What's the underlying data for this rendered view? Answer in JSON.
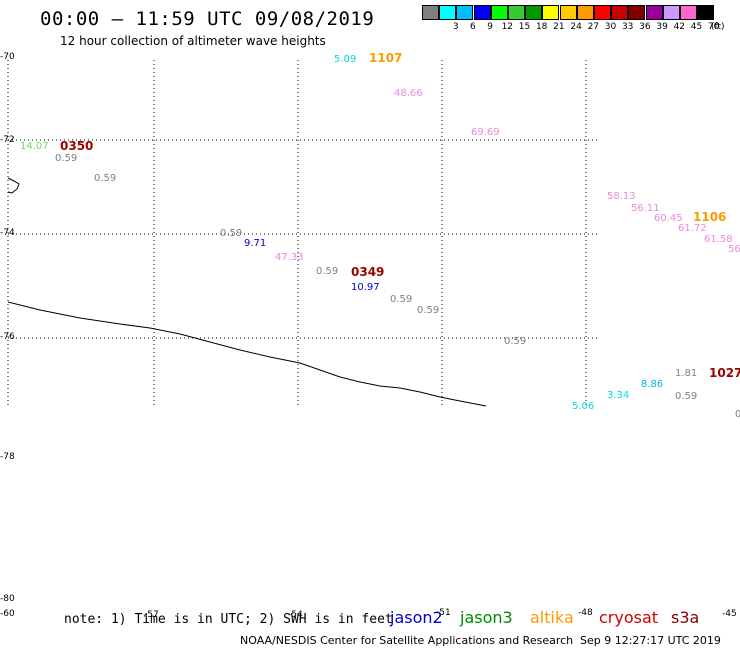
{
  "header": {
    "title": "00:00 – 11:59 UTC 09/08/2019",
    "subtitle": "12 hour collection of altimeter wave heights"
  },
  "colorbar": {
    "unit": "(ft)",
    "swatches": [
      {
        "label": "",
        "color": "#808080"
      },
      {
        "label": "3",
        "color": "#00ffff"
      },
      {
        "label": "6",
        "color": "#00bfff"
      },
      {
        "label": "9",
        "color": "#0000ff"
      },
      {
        "label": "12",
        "color": "#00ff00"
      },
      {
        "label": "15",
        "color": "#33cc33"
      },
      {
        "label": "18",
        "color": "#009900"
      },
      {
        "label": "21",
        "color": "#ffff00"
      },
      {
        "label": "24",
        "color": "#ffcc00"
      },
      {
        "label": "27",
        "color": "#ff9900"
      },
      {
        "label": "30",
        "color": "#ff0000"
      },
      {
        "label": "33",
        "color": "#cc0000"
      },
      {
        "label": "36",
        "color": "#800000"
      },
      {
        "label": "39",
        "color": "#990099"
      },
      {
        "label": "42",
        "color": "#cc99ff"
      },
      {
        "label": "45",
        "color": "#ff66cc"
      },
      {
        "label": "70",
        "color": "#000000"
      }
    ]
  },
  "map": {
    "lat_labels": [
      "-70",
      "-72",
      "-74",
      "-76",
      "-78",
      "-80",
      "-60"
    ],
    "lon_labels": [
      "-57",
      "-54",
      "-51",
      "-48",
      "-45"
    ]
  },
  "observations": [
    {
      "text": "5.09",
      "color": "#00d8e8"
    },
    {
      "text": "1107",
      "color": "#ff9900",
      "bold": true
    },
    {
      "text": "48.66",
      "color": "#ee88dd"
    },
    {
      "text": "69.69",
      "color": "#ee88dd"
    },
    {
      "text": "14.07",
      "color": "#66dd66"
    },
    {
      "text": "0350",
      "color": "#990000",
      "bold": true
    },
    {
      "text": "0.59",
      "color": "#808080"
    },
    {
      "text": "0.59",
      "color": "#808080"
    },
    {
      "text": "58.13",
      "color": "#ee88dd"
    },
    {
      "text": "56.11",
      "color": "#ee88dd"
    },
    {
      "text": "60.45",
      "color": "#ee88dd"
    },
    {
      "text": "1106",
      "color": "#ff9900",
      "bold": true
    },
    {
      "text": "61.72",
      "color": "#ee88dd"
    },
    {
      "text": "61.58",
      "color": "#ee88dd"
    },
    {
      "text": "56",
      "color": "#ee88dd"
    },
    {
      "text": "0.59",
      "color": "#808080"
    },
    {
      "text": "9.71",
      "color": "#0000cc"
    },
    {
      "text": "47.33",
      "color": "#ee88dd"
    },
    {
      "text": "0.59",
      "color": "#808080"
    },
    {
      "text": "0349",
      "color": "#990000",
      "bold": true
    },
    {
      "text": "10.97",
      "color": "#0000cc"
    },
    {
      "text": "0.59",
      "color": "#808080"
    },
    {
      "text": "0.59",
      "color": "#808080"
    },
    {
      "text": "0.59",
      "color": "#808080"
    },
    {
      "text": "1.81",
      "color": "#808080"
    },
    {
      "text": "1027",
      "color": "#990000",
      "bold": true
    },
    {
      "text": "8.86",
      "color": "#00b8e0"
    },
    {
      "text": "3.34",
      "color": "#00d8e8"
    },
    {
      "text": "0.59",
      "color": "#808080"
    },
    {
      "text": "5.06",
      "color": "#00d8e8"
    },
    {
      "text": "0",
      "color": "#808080"
    }
  ],
  "footer": {
    "note": "note: 1) Time is in UTC; 2) SWH is in feet",
    "legend": [
      {
        "name": "jason2",
        "color": "#0000cc"
      },
      {
        "name": "jason3",
        "color": "#008800"
      },
      {
        "name": "altika",
        "color": "#ff9900"
      },
      {
        "name": "cryosat",
        "color": "#cc0000"
      },
      {
        "name": "s3a",
        "color": "#880000"
      }
    ],
    "credit": "NOAA/NESDIS Center for Satellite Applications and Research",
    "timestamp": "Sep  9 12:27:17 UTC 2019"
  }
}
